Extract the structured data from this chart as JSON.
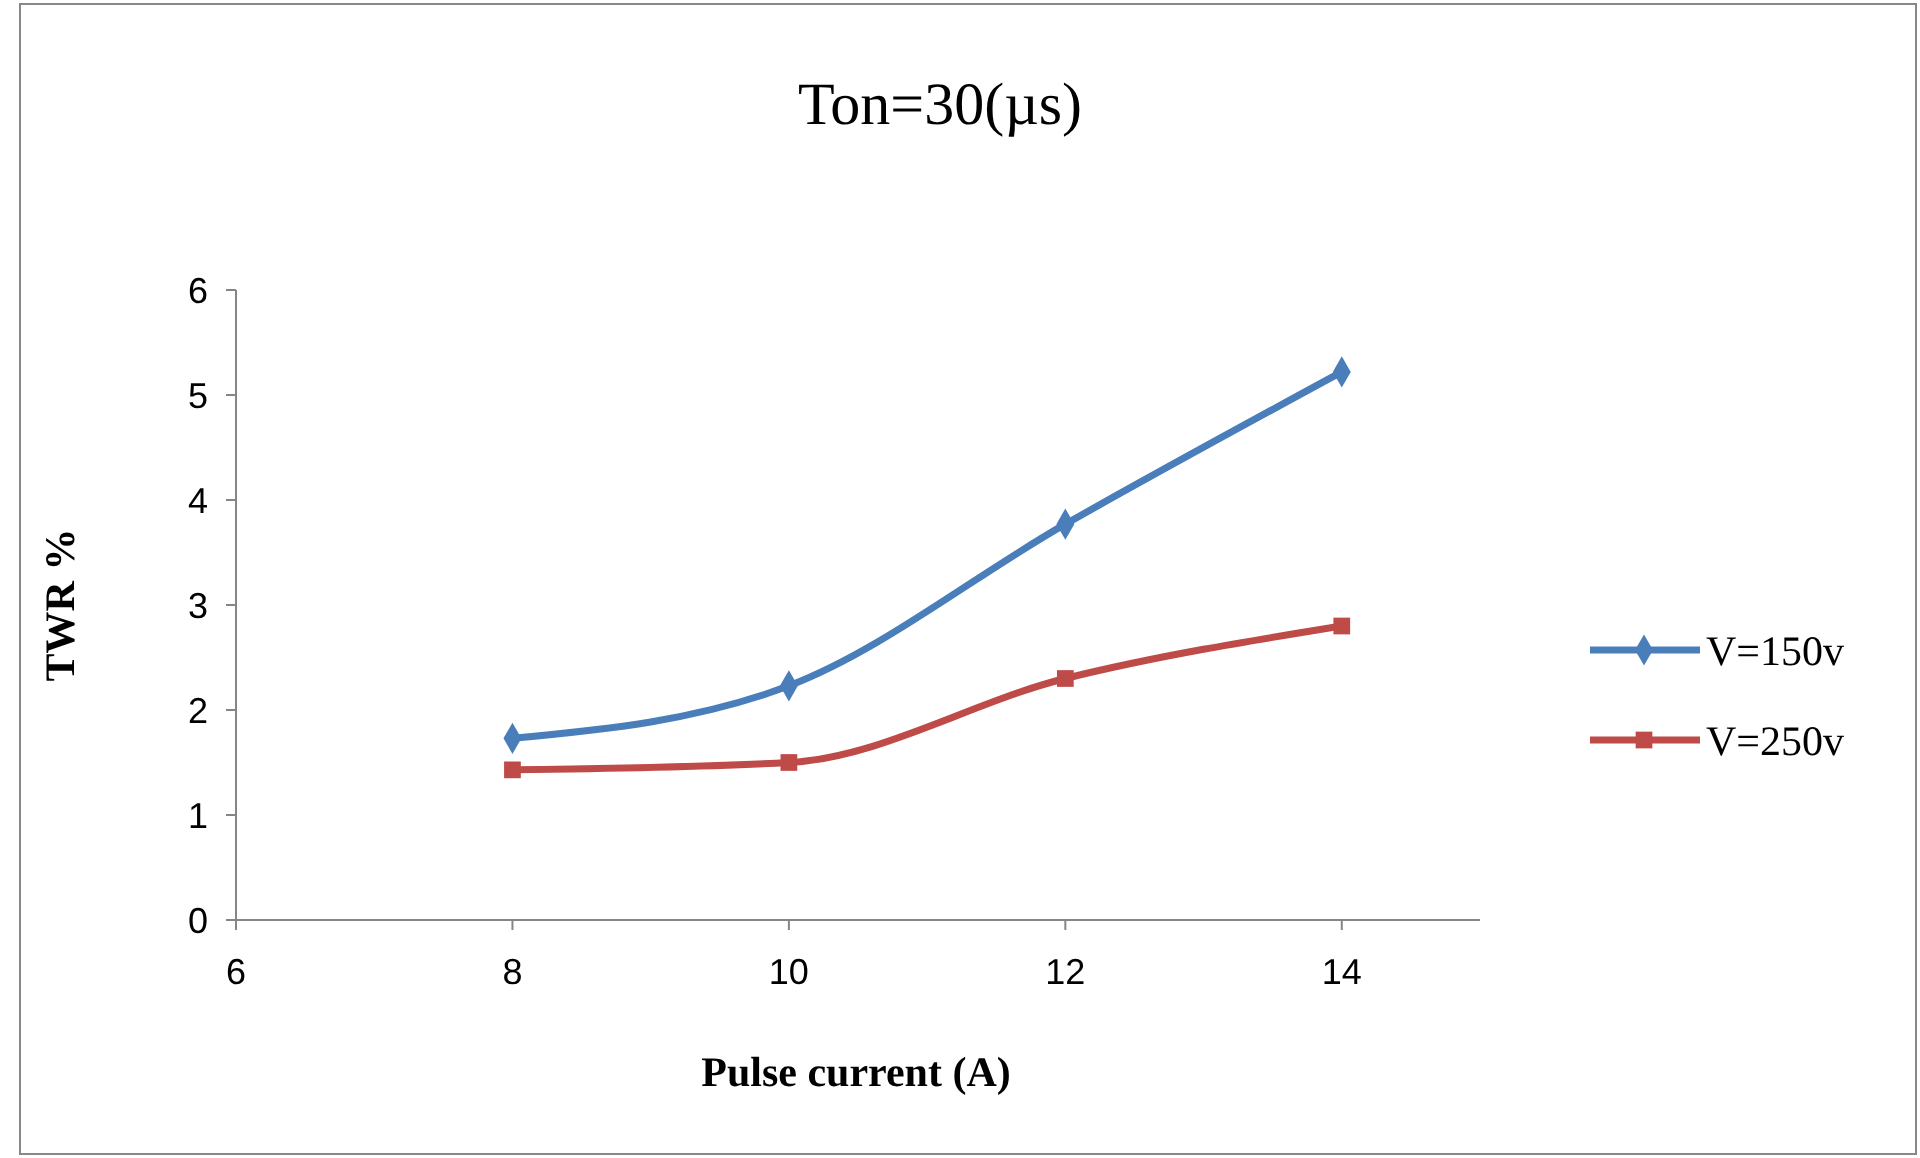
{
  "chart_data": {
    "type": "line",
    "title": "Ton=30(µs)",
    "xlabel": "Pulse current (A)",
    "ylabel": "TWR %",
    "x": [
      8,
      10,
      12,
      14
    ],
    "series": [
      {
        "name": "V=150v",
        "color": "#4a7ebb",
        "values": [
          1.73,
          2.23,
          3.77,
          5.22
        ],
        "marker": "diamond"
      },
      {
        "name": "V=250v",
        "color": "#be4b48",
        "values": [
          1.43,
          1.5,
          2.3,
          2.8
        ],
        "marker": "square"
      }
    ],
    "xlim": [
      6,
      15
    ],
    "xticks": [
      6,
      8,
      10,
      12,
      14
    ],
    "ylim": [
      0,
      6
    ],
    "yticks": [
      0,
      1,
      2,
      3,
      4,
      5,
      6
    ],
    "grid": false,
    "legend": "right",
    "line_style": "solid"
  }
}
